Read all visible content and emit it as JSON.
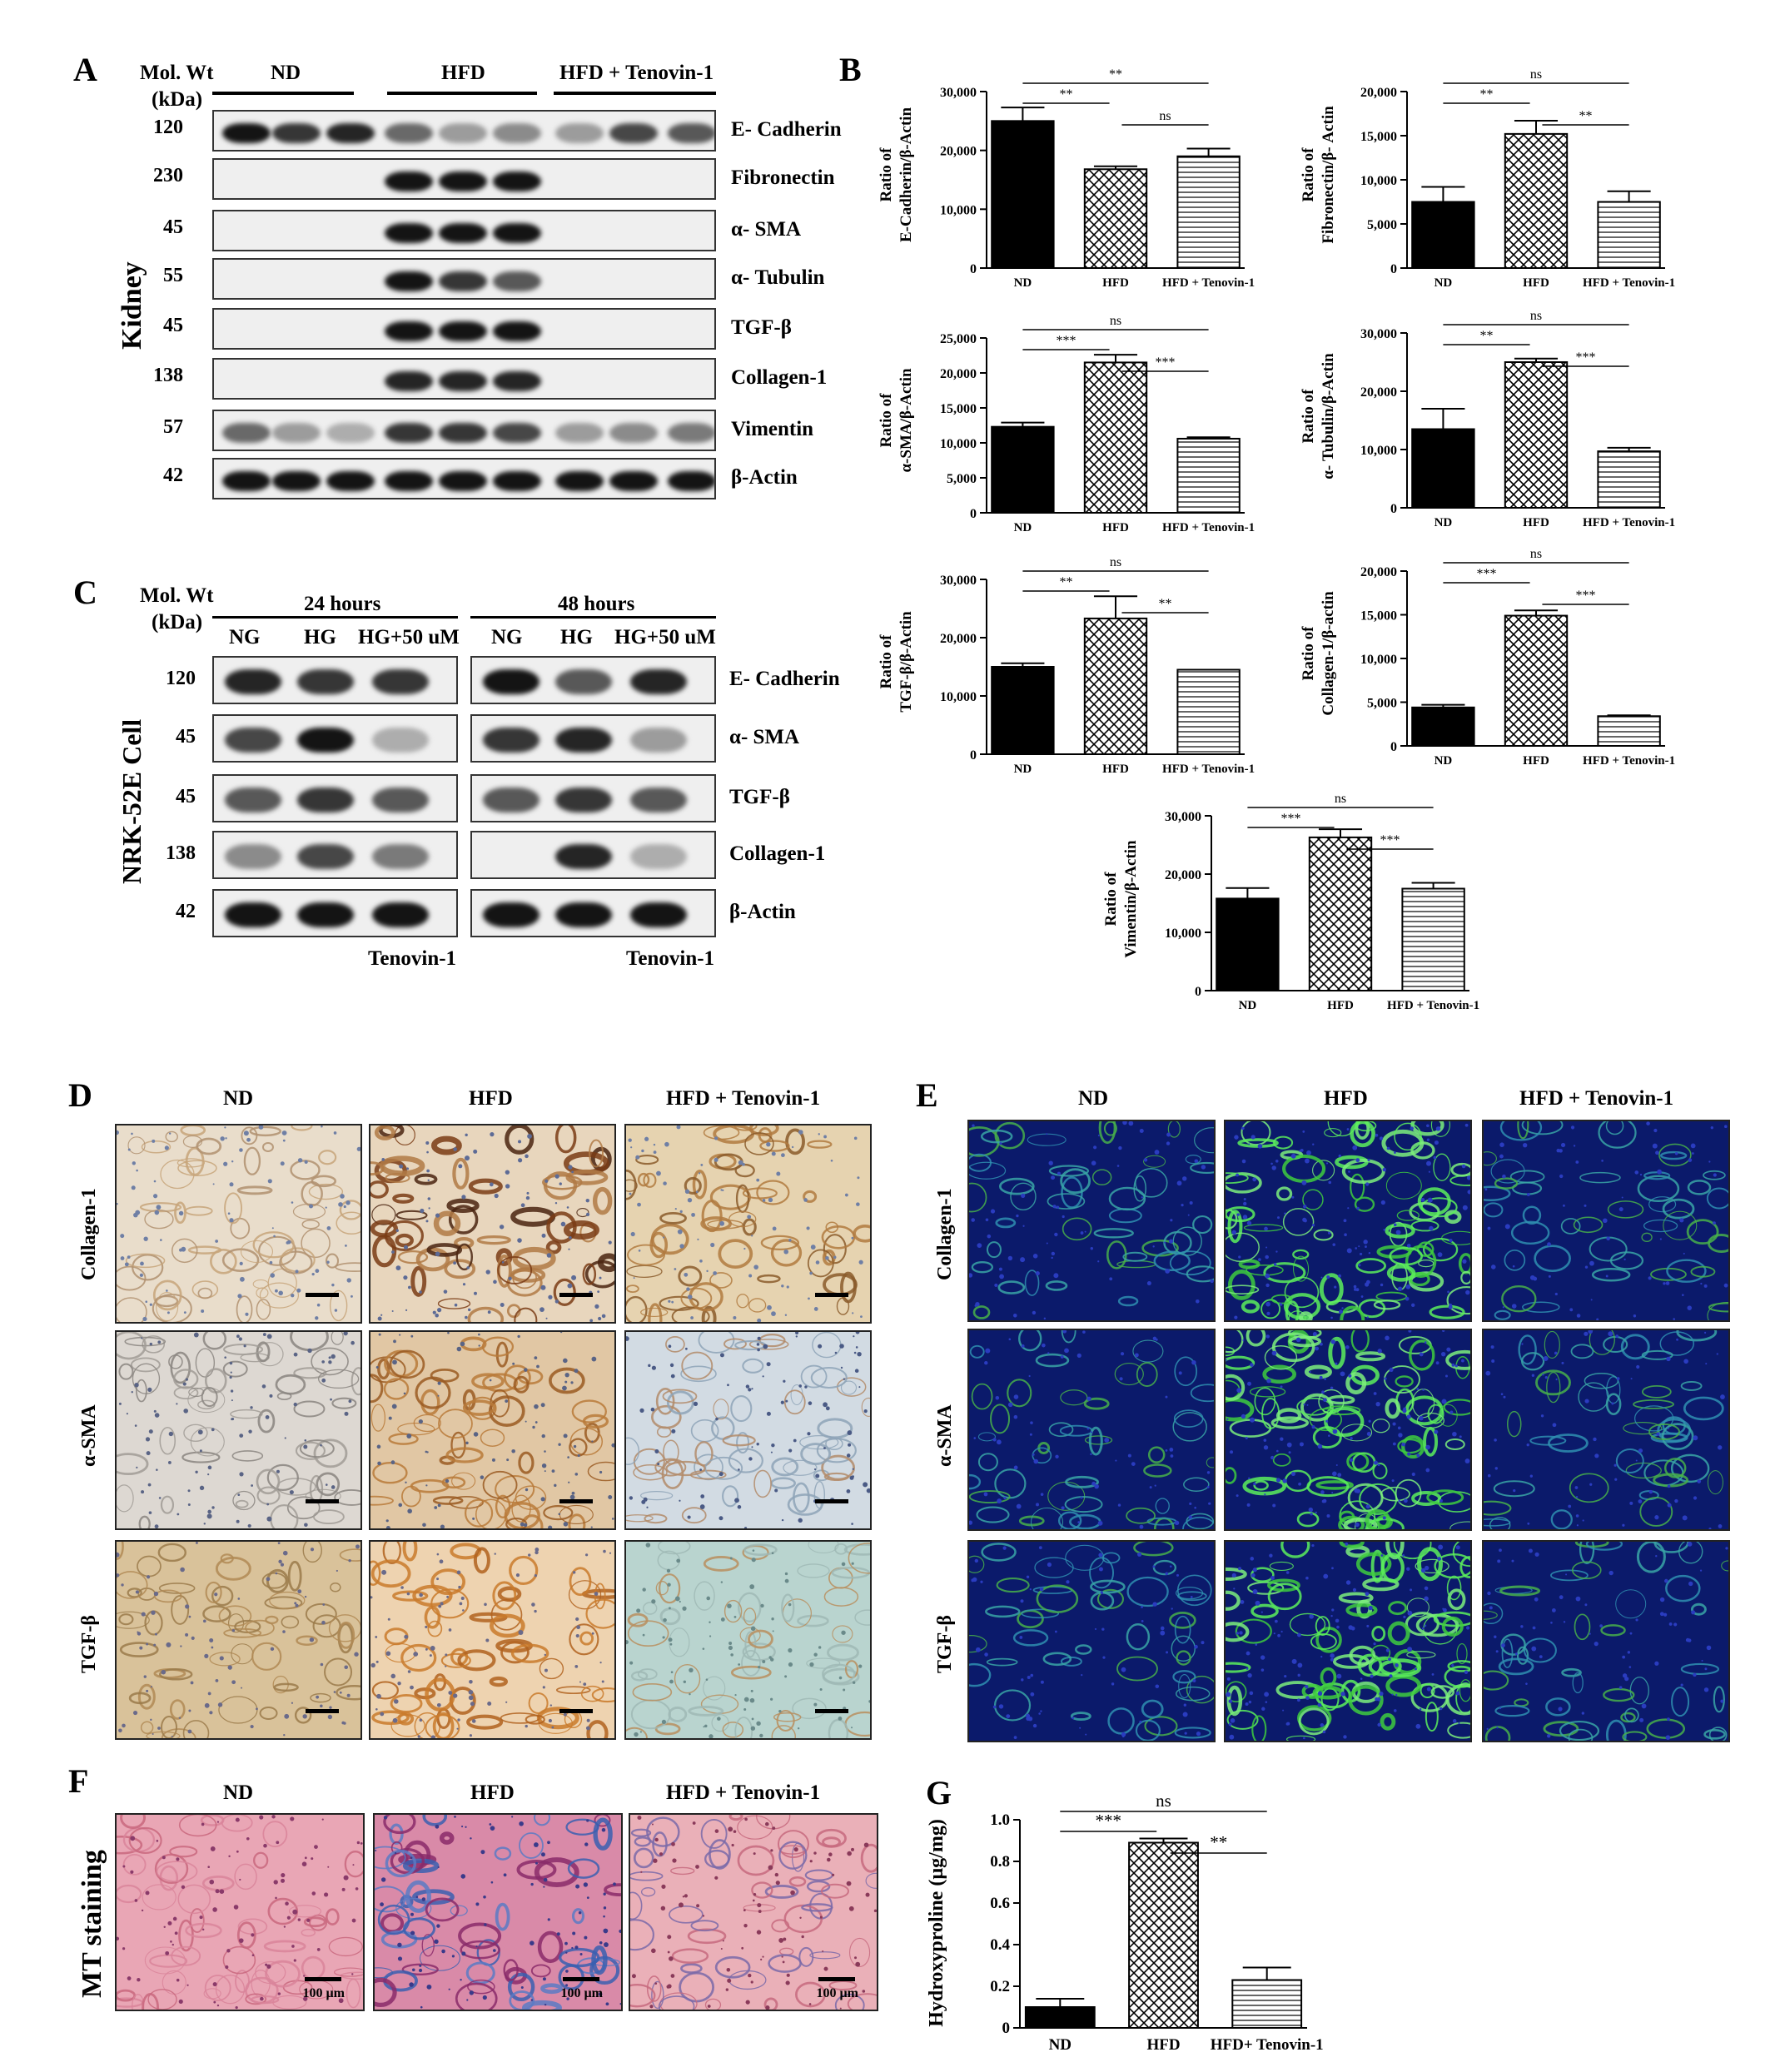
{
  "panelA": {
    "letter": "A",
    "mol_wt_header": "Mol. Wt",
    "kda_header": "(kDa)",
    "groups": [
      "ND",
      "HFD",
      "HFD + Tenovin-1"
    ],
    "side_label": "Kidney",
    "rows": [
      {
        "mw": "120",
        "protein": "E- Cadherin"
      },
      {
        "mw": "230",
        "protein": "Fibronectin"
      },
      {
        "mw": "45",
        "protein": "α- SMA"
      },
      {
        "mw": "55",
        "protein": "α- Tubulin"
      },
      {
        "mw": "45",
        "protein": "TGF-β"
      },
      {
        "mw": "138",
        "protein": "Collagen-1"
      },
      {
        "mw": "57",
        "protein": "Vimentin"
      },
      {
        "mw": "42",
        "protein": "β-Actin"
      }
    ]
  },
  "panelB": {
    "letter": "B"
  },
  "panelC": {
    "letter": "C",
    "mol_wt_header": "Mol. Wt",
    "kda_header": "(kDa)",
    "time_groups": [
      "24 hours",
      "48 hours"
    ],
    "lanes": [
      "NG",
      "HG",
      "HG+50 uM"
    ],
    "treatment": "Tenovin-1",
    "side_label": "NRK-52E Cell",
    "rows": [
      {
        "mw": "120",
        "protein": "E- Cadherin"
      },
      {
        "mw": "45",
        "protein": "α- SMA"
      },
      {
        "mw": "45",
        "protein": "TGF-β"
      },
      {
        "mw": "138",
        "protein": "Collagen-1"
      },
      {
        "mw": "42",
        "protein": "β-Actin"
      }
    ]
  },
  "panelD": {
    "letter": "D",
    "columns": [
      "ND",
      "HFD",
      "HFD + Tenovin-1"
    ],
    "rows": [
      "Collagen-1",
      "α-SMA",
      "TGF-β"
    ]
  },
  "panelE": {
    "letter": "E",
    "columns": [
      "ND",
      "HFD",
      "HFD + Tenovin-1"
    ],
    "rows": [
      "Collagen-1",
      "α-SMA",
      "TGF-β"
    ]
  },
  "panelF": {
    "letter": "F",
    "columns": [
      "ND",
      "HFD",
      "HFD + Tenovin-1"
    ],
    "side_label": "MT staining",
    "scale_label": "100 µm"
  },
  "panelG": {
    "letter": "G"
  },
  "colors": {
    "nd_bar": "#000000",
    "hfd_pattern": "crosshatch",
    "teno_pattern": "horizontal-lines"
  },
  "chart_data": [
    {
      "type": "bar",
      "id": "ecad",
      "categories": [
        "ND",
        "HFD",
        "HFD + Tenovin-1"
      ],
      "values": [
        25000,
        16800,
        19000
      ],
      "errors": [
        2300,
        500,
        1300
      ],
      "ylabel": "Ratio of E-Cadherin/β-Actin",
      "ylim": [
        0,
        30000
      ],
      "yticks": [
        "0",
        "10,000",
        "20,000",
        "30,000"
      ],
      "ytick_values": [
        0,
        10000,
        20000,
        30000
      ],
      "significance": [
        {
          "from": 0,
          "to": 2,
          "label": "**"
        },
        {
          "from": 0,
          "to": 1,
          "label": "**"
        },
        {
          "from": 1,
          "to": 2,
          "label": "ns"
        }
      ]
    },
    {
      "type": "bar",
      "id": "fibro",
      "categories": [
        "ND",
        "HFD",
        "HFD + Tenovin-1"
      ],
      "values": [
        7500,
        15200,
        7500
      ],
      "errors": [
        1700,
        1500,
        1200
      ],
      "ylabel": "Ratio of Fibronectin/β- Actin",
      "ylim": [
        0,
        20000
      ],
      "yticks": [
        "0",
        "5,000",
        "10,000",
        "15,000",
        "20,000"
      ],
      "ytick_values": [
        0,
        5000,
        10000,
        15000,
        20000
      ],
      "significance": [
        {
          "from": 0,
          "to": 2,
          "label": "ns"
        },
        {
          "from": 0,
          "to": 1,
          "label": "**"
        },
        {
          "from": 1,
          "to": 2,
          "label": "**"
        }
      ]
    },
    {
      "type": "bar",
      "id": "asma",
      "categories": [
        "ND",
        "HFD",
        "HFD + Tenovin-1"
      ],
      "values": [
        12300,
        21500,
        10600
      ],
      "errors": [
        600,
        1100,
        200
      ],
      "ylabel": "Ratio of α-SMA/β-Actin",
      "ylim": [
        0,
        25000
      ],
      "yticks": [
        "0",
        "5,000",
        "10,000",
        "15,000",
        "20,000",
        "25,000"
      ],
      "ytick_values": [
        0,
        5000,
        10000,
        15000,
        20000,
        25000
      ],
      "significance": [
        {
          "from": 0,
          "to": 2,
          "label": "ns"
        },
        {
          "from": 0,
          "to": 1,
          "label": "***"
        },
        {
          "from": 1,
          "to": 2,
          "label": "***"
        }
      ]
    },
    {
      "type": "bar",
      "id": "tubulin",
      "categories": [
        "ND",
        "HFD",
        "HFD + Tenovin-1"
      ],
      "values": [
        13500,
        25000,
        9700
      ],
      "errors": [
        3500,
        600,
        600
      ],
      "ylabel": "Ratio of α- Tubulin/β-Actin",
      "ylim": [
        0,
        30000
      ],
      "yticks": [
        "0",
        "10,000",
        "20,000",
        "30,000"
      ],
      "ytick_values": [
        0,
        10000,
        20000,
        30000
      ],
      "significance": [
        {
          "from": 0,
          "to": 2,
          "label": "ns"
        },
        {
          "from": 0,
          "to": 1,
          "label": "**"
        },
        {
          "from": 1,
          "to": 2,
          "label": "***"
        }
      ]
    },
    {
      "type": "bar",
      "id": "tgfb",
      "categories": [
        "ND",
        "HFD",
        "HFD + Tenovin-1"
      ],
      "values": [
        15000,
        23300,
        14500
      ],
      "errors": [
        600,
        3800,
        0
      ],
      "ylabel": "Ratio of TGF-β/β-Actin",
      "ylim": [
        0,
        30000
      ],
      "yticks": [
        "0",
        "10,000",
        "20,000",
        "30,000"
      ],
      "ytick_values": [
        0,
        10000,
        20000,
        30000
      ],
      "significance": [
        {
          "from": 0,
          "to": 2,
          "label": "ns"
        },
        {
          "from": 0,
          "to": 1,
          "label": "**"
        },
        {
          "from": 1,
          "to": 2,
          "label": "**"
        }
      ]
    },
    {
      "type": "bar",
      "id": "collagen",
      "categories": [
        "ND",
        "HFD",
        "HFD + Tenovin-1"
      ],
      "values": [
        4400,
        14900,
        3400
      ],
      "errors": [
        300,
        600,
        100
      ],
      "ylabel": "Ratio of Collagen-1/β-actin",
      "ylim": [
        0,
        20000
      ],
      "yticks": [
        "0",
        "5,000",
        "10,000",
        "15,000",
        "20,000"
      ],
      "ytick_values": [
        0,
        5000,
        10000,
        15000,
        20000
      ],
      "significance": [
        {
          "from": 0,
          "to": 2,
          "label": "ns"
        },
        {
          "from": 0,
          "to": 1,
          "label": "***"
        },
        {
          "from": 1,
          "to": 2,
          "label": "***"
        }
      ]
    },
    {
      "type": "bar",
      "id": "vimentin",
      "categories": [
        "ND",
        "HFD",
        "HFD + Tenovin-1"
      ],
      "values": [
        15800,
        26300,
        17500
      ],
      "errors": [
        1800,
        1400,
        1000
      ],
      "ylabel": "Ratio of Vimentin/β-Actin",
      "ylim": [
        0,
        30000
      ],
      "yticks": [
        "0",
        "10,000",
        "20,000",
        "30,000"
      ],
      "ytick_values": [
        0,
        10000,
        20000,
        30000
      ],
      "significance": [
        {
          "from": 0,
          "to": 2,
          "label": "ns"
        },
        {
          "from": 0,
          "to": 1,
          "label": "***"
        },
        {
          "from": 1,
          "to": 2,
          "label": "***"
        }
      ]
    },
    {
      "type": "bar",
      "id": "hydroxy",
      "categories": [
        "ND",
        "HFD",
        "HFD+ Tenovin-1"
      ],
      "values": [
        0.1,
        0.89,
        0.23
      ],
      "errors": [
        0.04,
        0.02,
        0.06
      ],
      "ylabel": "Hydroxyproline (µg/mg)",
      "ylim": [
        0,
        1.0
      ],
      "yticks": [
        "0",
        "0.2",
        "0.4",
        "0.6",
        "0.8",
        "1.0"
      ],
      "ytick_values": [
        0,
        0.2,
        0.4,
        0.6,
        0.8,
        1.0
      ],
      "significance": [
        {
          "from": 0,
          "to": 2,
          "label": "ns"
        },
        {
          "from": 0,
          "to": 1,
          "label": "***"
        },
        {
          "from": 1,
          "to": 2,
          "label": "**"
        }
      ]
    }
  ]
}
